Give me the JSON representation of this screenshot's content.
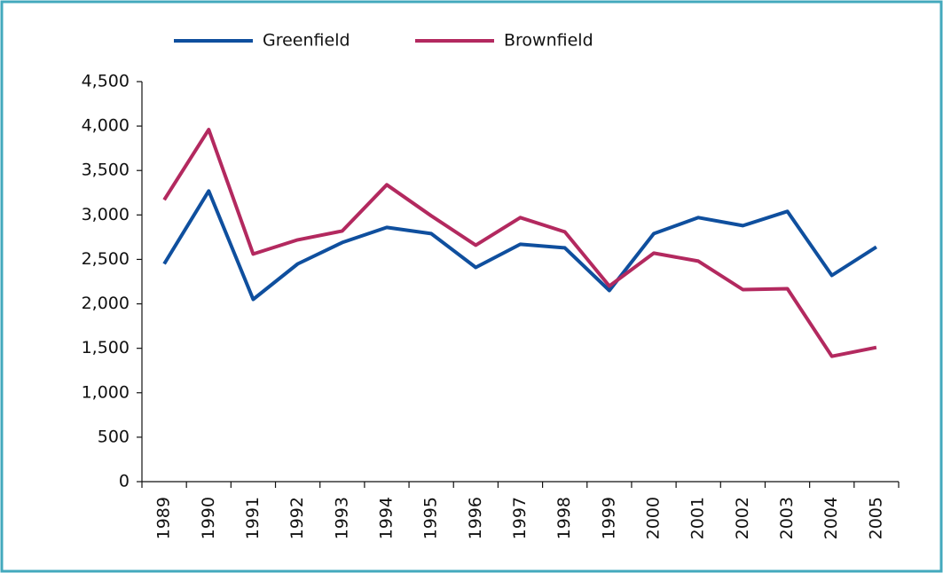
{
  "chart_data": {
    "type": "line",
    "categories": [
      "1989",
      "1990",
      "1991",
      "1992",
      "1993",
      "1994",
      "1995",
      "1996",
      "1997",
      "1998",
      "1999",
      "2000",
      "2001",
      "2002",
      "2003",
      "2004",
      "2005"
    ],
    "series": [
      {
        "name": "Greenfield",
        "color": "#0f4f9e",
        "values": [
          2450,
          3270,
          2050,
          2450,
          2690,
          2860,
          2790,
          2410,
          2670,
          2630,
          2150,
          2790,
          2970,
          2880,
          3040,
          2320,
          2640
        ]
      },
      {
        "name": "Brownfield",
        "color": "#b3295f",
        "values": [
          3170,
          3960,
          2560,
          2720,
          2820,
          3340,
          2990,
          2660,
          2970,
          2810,
          2200,
          2570,
          2480,
          2160,
          2170,
          1410,
          1510
        ]
      }
    ],
    "ylim": [
      0,
      4500
    ],
    "yticks": [
      0,
      500,
      {
        "value": 1000,
        "label": "1,000"
      },
      {
        "value": 1500,
        "label": "1,500"
      },
      {
        "value": 2000,
        "label": "2,000"
      },
      {
        "value": 2500,
        "label": "2,500"
      },
      {
        "value": 3000,
        "label": "3,000"
      },
      {
        "value": 3500,
        "label": "3,500"
      },
      {
        "value": 4000,
        "label": "4,000"
      },
      {
        "value": 4500,
        "label": "4,500"
      }
    ],
    "grid": false
  }
}
